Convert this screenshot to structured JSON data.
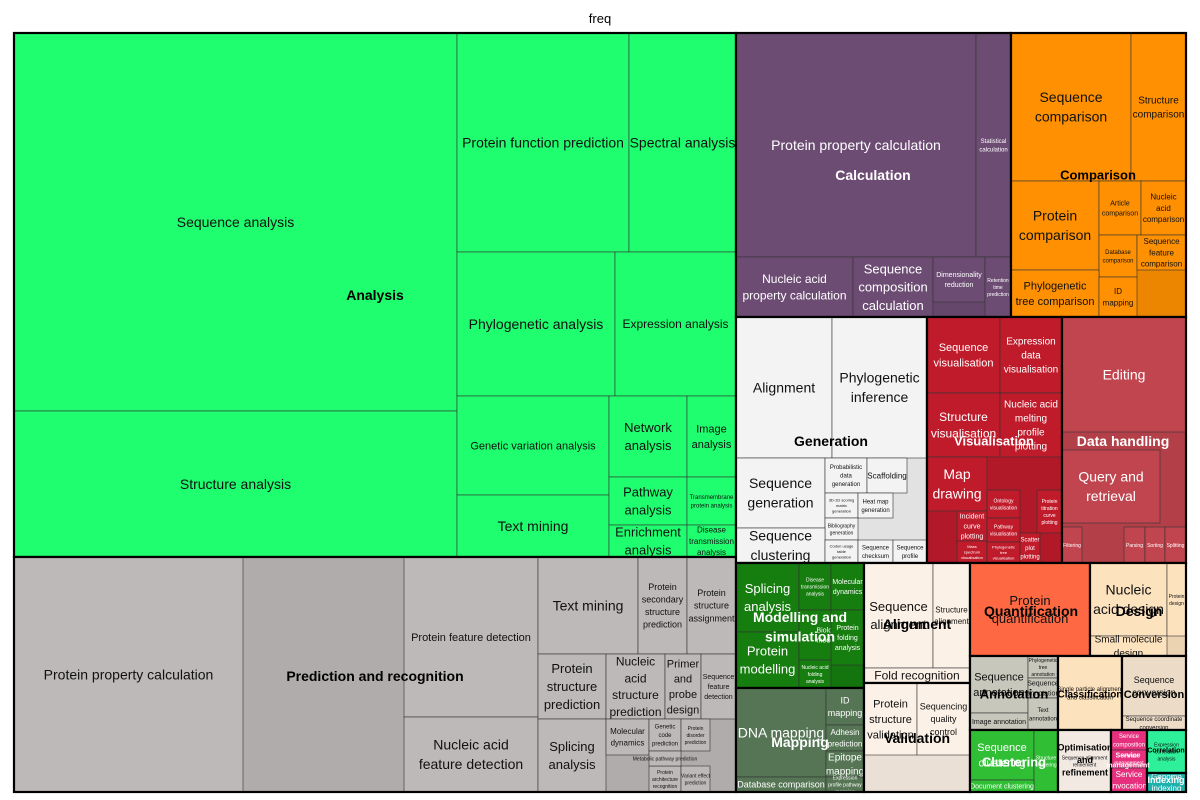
{
  "chart_data": {
    "type": "treemap",
    "title": "freq",
    "groups": [
      {
        "name": "Analysis",
        "color": "#1efe6f",
        "leaves": [
          {
            "label": "Sequence analysis"
          },
          {
            "label": "Structure analysis"
          },
          {
            "label": "Protein function prediction"
          },
          {
            "label": "Spectral analysis"
          },
          {
            "label": "Phylogenetic analysis"
          },
          {
            "label": "Expression analysis"
          },
          {
            "label": "Genetic variation analysis"
          },
          {
            "label": "Network analysis"
          },
          {
            "label": "Image analysis"
          },
          {
            "label": "Text mining"
          },
          {
            "label": "Pathway analysis"
          },
          {
            "label": "Transmembrane protein analysis"
          },
          {
            "label": "Enrichment analysis"
          },
          {
            "label": "Disease transmission analysis"
          }
        ]
      },
      {
        "name": "Prediction and recognition",
        "color": "#bdb9b8",
        "leaves": [
          {
            "label": "Protein property calculation"
          },
          {
            "label": "Protein feature detection"
          },
          {
            "label": "Nucleic acid feature detection"
          },
          {
            "label": "Text mining"
          },
          {
            "label": "Protein secondary structure prediction"
          },
          {
            "label": "Protein structure assignment"
          },
          {
            "label": "Protein structure prediction"
          },
          {
            "label": "Nucleic acid structure prediction"
          },
          {
            "label": "Primer and probe design"
          },
          {
            "label": "Sequence feature detection"
          },
          {
            "label": "Splicing analysis"
          },
          {
            "label": "Molecular dynamics"
          },
          {
            "label": "Genetic code prediction"
          },
          {
            "label": "Protein disorder prediction"
          },
          {
            "label": "Protein architecture recognition"
          },
          {
            "label": "Variant effect prediction"
          },
          {
            "label": "Metabolic pathway prediction"
          }
        ]
      },
      {
        "name": "Calculation",
        "color": "#6d4c74",
        "leaves": [
          {
            "label": "Protein property calculation"
          },
          {
            "label": "Statistical calculation"
          },
          {
            "label": "Nucleic acid property calculation"
          },
          {
            "label": "Sequence composition calculation"
          },
          {
            "label": "Dimensionality reduction"
          },
          {
            "label": "Retention time prediction"
          }
        ]
      },
      {
        "name": "Comparison",
        "color": "#fe9001",
        "leaves": [
          {
            "label": "Sequence comparison"
          },
          {
            "label": "Structure comparison"
          },
          {
            "label": "Protein comparison"
          },
          {
            "label": "Article comparison"
          },
          {
            "label": "Nucleic acid comparison"
          },
          {
            "label": "Database comparison"
          },
          {
            "label": "Sequence feature comparison"
          },
          {
            "label": "Phylogenetic tree comparison"
          },
          {
            "label": "ID mapping"
          }
        ]
      },
      {
        "name": "Generation",
        "color": "#f3f3f3",
        "leaves": [
          {
            "label": "Alignment"
          },
          {
            "label": "Phylogenetic inference"
          },
          {
            "label": "Sequence generation"
          },
          {
            "label": "Probabilistic data generation"
          },
          {
            "label": "Scaffolding"
          },
          {
            "label": "3D-1D scoring matrix generation"
          },
          {
            "label": "Heat map generation"
          },
          {
            "label": "Bibliography generation"
          },
          {
            "label": "Sequence clustering"
          },
          {
            "label": "Codon usage table generation"
          },
          {
            "label": "Sequence checksum generation"
          },
          {
            "label": "Sequence profile generation"
          }
        ]
      },
      {
        "name": "Visualisation",
        "color": "#bf1b2b",
        "leaves": [
          {
            "label": "Sequence visualisation"
          },
          {
            "label": "Expression data visualisation"
          },
          {
            "label": "Structure visualisation"
          },
          {
            "label": "Nucleic acid melting profile plotting"
          },
          {
            "label": "Map drawing"
          },
          {
            "label": "Ontology visualisation"
          },
          {
            "label": "Protein titration curve plotting"
          },
          {
            "label": "Incident curve plotting"
          },
          {
            "label": "Pathway visualisation"
          },
          {
            "label": "Mass spectrum visualisation"
          },
          {
            "label": "Phylogenetic tree visualisation"
          },
          {
            "label": "Scatter plot plotting"
          }
        ]
      },
      {
        "name": "Data handling",
        "color": "#c1454f",
        "leaves": [
          {
            "label": "Editing"
          },
          {
            "label": "Query and retrieval"
          },
          {
            "label": "Filtering"
          },
          {
            "label": "Parsing"
          },
          {
            "label": "Sorting"
          },
          {
            "label": "Splitting"
          }
        ]
      },
      {
        "name": "Modelling and simulation",
        "color": "#167d0f",
        "leaves": [
          {
            "label": "Splicing analysis"
          },
          {
            "label": "Disease transmission analysis"
          },
          {
            "label": "Molecular dynamics"
          },
          {
            "label": "Protein modelling"
          },
          {
            "label": "Biological modelling"
          },
          {
            "label": "Protein folding analysis"
          },
          {
            "label": "Nucleic acid folding analysis"
          }
        ]
      },
      {
        "name": "Alignment",
        "color": "#fcf1e6",
        "leaves": [
          {
            "label": "Sequence alignment"
          },
          {
            "label": "Structure alignment"
          },
          {
            "label": "Fold recognition"
          }
        ]
      },
      {
        "name": "Quantification",
        "color": "#fe6943",
        "leaves": [
          {
            "label": "Protein quantification"
          }
        ]
      },
      {
        "name": "Design",
        "color": "#fde2be",
        "leaves": [
          {
            "label": "Nucleic acid design"
          },
          {
            "label": "Small molecule design"
          },
          {
            "label": "Protein design"
          }
        ]
      },
      {
        "name": "Mapping",
        "color": "#557554",
        "leaves": [
          {
            "label": "DNA mapping"
          },
          {
            "label": "ID mapping"
          },
          {
            "label": "Adhesin prediction"
          },
          {
            "label": "Epitope mapping"
          },
          {
            "label": "Database comparison"
          },
          {
            "label": "Expression profile pathway mapping"
          }
        ]
      },
      {
        "name": "Validation",
        "color": "#fcf1e6",
        "leaves": [
          {
            "label": "Protein structure validation"
          },
          {
            "label": "Sequencing quality control"
          }
        ]
      },
      {
        "name": "Annotation",
        "color": "#c8c7bb",
        "leaves": [
          {
            "label": "Sequence annotation"
          },
          {
            "label": "Phylogenetic tree annotation"
          },
          {
            "label": "Sequence annotation"
          },
          {
            "label": "Image annotation"
          },
          {
            "label": "Text annotation"
          }
        ]
      },
      {
        "name": "Classification",
        "color": "#fde2be",
        "leaves": [
          {
            "label": "Single particle alignment and classification"
          }
        ]
      },
      {
        "name": "Conversion",
        "color": "#ecdcc7",
        "leaves": [
          {
            "label": "Sequence conversion"
          },
          {
            "label": "Sequence coordinate conversion"
          }
        ]
      },
      {
        "name": "Clustering",
        "color": "#30be34",
        "leaves": [
          {
            "label": "Sequence clustering"
          },
          {
            "label": "Structure clustering"
          },
          {
            "label": "Document clustering"
          }
        ]
      },
      {
        "name": "Optimisation and refinement",
        "color": "#f3e9e3",
        "leaves": [
          {
            "label": "Sequence alignment refinement"
          }
        ]
      },
      {
        "name": "Service management",
        "color": "#e6307d",
        "leaves": [
          {
            "label": "Service composition"
          },
          {
            "label": "Service management"
          },
          {
            "label": "Service invocation"
          }
        ]
      },
      {
        "name": "Correlation",
        "color": "#2ef09a",
        "leaves": [
          {
            "label": "Expression correlation analysis"
          }
        ]
      },
      {
        "name": "Indexing",
        "color": "#1fb1ac",
        "leaves": [
          {
            "label": "Genome indexing"
          }
        ]
      }
    ]
  }
}
